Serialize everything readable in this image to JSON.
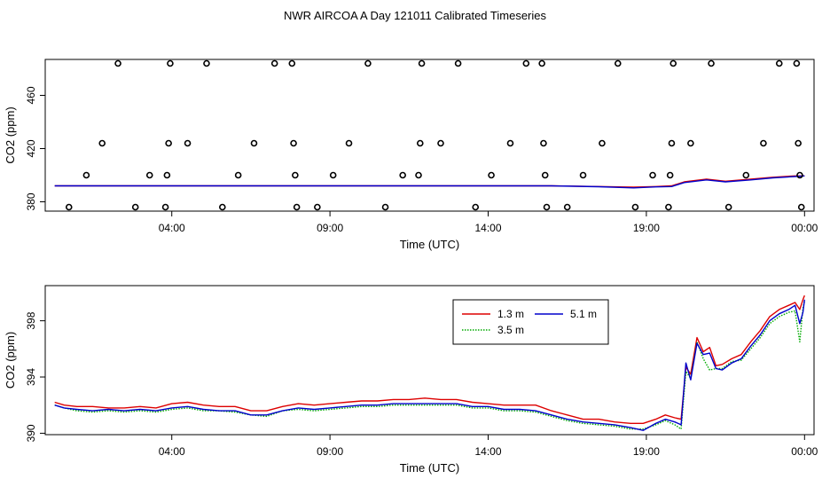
{
  "title": "NWR AIRCOA A  Day 121011  Calibrated Timeseries",
  "chart_data": [
    {
      "type": "scatter+line",
      "xlabel": "Time (UTC)",
      "ylabel": "CO2 (ppm)",
      "xlim": [
        0,
        24.3
      ],
      "ylim": [
        373,
        487
      ],
      "x_ticks": [
        {
          "v": 4,
          "label": "04:00"
        },
        {
          "v": 9,
          "label": "09:00"
        },
        {
          "v": 14,
          "label": "14:00"
        },
        {
          "v": 19,
          "label": "19:00"
        },
        {
          "v": 24,
          "label": "00:00"
        }
      ],
      "y_ticks": [
        {
          "v": 380,
          "label": "380"
        },
        {
          "v": 420,
          "label": "420"
        },
        {
          "v": 460,
          "label": "460"
        }
      ],
      "cal_points": [
        {
          "x": 0.75,
          "y": 376
        },
        {
          "x": 1.3,
          "y": 400
        },
        {
          "x": 1.8,
          "y": 424
        },
        {
          "x": 2.3,
          "y": 484
        },
        {
          "x": 2.85,
          "y": 376
        },
        {
          "x": 3.3,
          "y": 400
        },
        {
          "x": 3.8,
          "y": 376
        },
        {
          "x": 3.85,
          "y": 400
        },
        {
          "x": 3.9,
          "y": 424
        },
        {
          "x": 3.95,
          "y": 484
        },
        {
          "x": 4.5,
          "y": 424
        },
        {
          "x": 5.1,
          "y": 484
        },
        {
          "x": 5.6,
          "y": 376
        },
        {
          "x": 6.1,
          "y": 400
        },
        {
          "x": 6.6,
          "y": 424
        },
        {
          "x": 7.25,
          "y": 484
        },
        {
          "x": 7.8,
          "y": 484
        },
        {
          "x": 7.85,
          "y": 424
        },
        {
          "x": 7.9,
          "y": 400
        },
        {
          "x": 7.95,
          "y": 376
        },
        {
          "x": 8.6,
          "y": 376
        },
        {
          "x": 9.1,
          "y": 400
        },
        {
          "x": 9.6,
          "y": 424
        },
        {
          "x": 10.2,
          "y": 484
        },
        {
          "x": 10.75,
          "y": 376
        },
        {
          "x": 11.3,
          "y": 400
        },
        {
          "x": 11.8,
          "y": 400
        },
        {
          "x": 11.85,
          "y": 424
        },
        {
          "x": 11.9,
          "y": 484
        },
        {
          "x": 12.5,
          "y": 424
        },
        {
          "x": 13.05,
          "y": 484
        },
        {
          "x": 13.6,
          "y": 376
        },
        {
          "x": 14.1,
          "y": 400
        },
        {
          "x": 14.7,
          "y": 424
        },
        {
          "x": 15.2,
          "y": 484
        },
        {
          "x": 15.7,
          "y": 484
        },
        {
          "x": 15.75,
          "y": 424
        },
        {
          "x": 15.8,
          "y": 400
        },
        {
          "x": 15.85,
          "y": 376
        },
        {
          "x": 16.5,
          "y": 376
        },
        {
          "x": 17.0,
          "y": 400
        },
        {
          "x": 17.6,
          "y": 424
        },
        {
          "x": 18.1,
          "y": 484
        },
        {
          "x": 18.65,
          "y": 376
        },
        {
          "x": 19.2,
          "y": 400
        },
        {
          "x": 19.7,
          "y": 376
        },
        {
          "x": 19.75,
          "y": 400
        },
        {
          "x": 19.8,
          "y": 424
        },
        {
          "x": 19.85,
          "y": 484
        },
        {
          "x": 20.4,
          "y": 424
        },
        {
          "x": 21.05,
          "y": 484
        },
        {
          "x": 21.6,
          "y": 376
        },
        {
          "x": 22.15,
          "y": 400
        },
        {
          "x": 22.7,
          "y": 424
        },
        {
          "x": 23.2,
          "y": 484
        },
        {
          "x": 23.75,
          "y": 484
        },
        {
          "x": 23.8,
          "y": 424
        },
        {
          "x": 23.85,
          "y": 400
        },
        {
          "x": 23.9,
          "y": 376
        }
      ],
      "series": [
        {
          "name": "1.3 m",
          "color": "#dd0000",
          "x": [
            0.3,
            2,
            4,
            6,
            9,
            12,
            14,
            16,
            17.5,
            18.6,
            19.3,
            19.8,
            20.2,
            20.9,
            21.5,
            22.3,
            23,
            23.7,
            24
          ],
          "y": [
            392,
            392,
            392,
            392,
            392,
            392,
            392,
            392,
            391.5,
            391,
            391.5,
            392,
            395,
            397,
            395.5,
            397,
            398.5,
            399.5,
            399.5
          ]
        },
        {
          "name": "5.1 m",
          "color": "#0000cc",
          "x": [
            0.3,
            2,
            4,
            6,
            9,
            12,
            14,
            16,
            17.5,
            18.6,
            19.3,
            19.8,
            20.2,
            20.9,
            21.5,
            22.3,
            23,
            23.7,
            24
          ],
          "y": [
            392,
            392,
            392,
            392,
            392,
            392,
            392,
            392,
            391.3,
            390.5,
            391.2,
            391.5,
            394.5,
            396.5,
            395,
            396.5,
            398,
            399,
            399.5
          ]
        }
      ]
    },
    {
      "type": "line",
      "xlabel": "Time (UTC)",
      "ylabel": "CO2 (ppm)",
      "xlim": [
        0,
        24.3
      ],
      "ylim": [
        389.9,
        400.5
      ],
      "x_ticks": [
        {
          "v": 4,
          "label": "04:00"
        },
        {
          "v": 9,
          "label": "09:00"
        },
        {
          "v": 14,
          "label": "14:00"
        },
        {
          "v": 19,
          "label": "19:00"
        },
        {
          "v": 24,
          "label": "00:00"
        }
      ],
      "y_ticks": [
        {
          "v": 390,
          "label": "390"
        },
        {
          "v": 394,
          "label": "394"
        },
        {
          "v": 398,
          "label": "398"
        }
      ],
      "legend": {
        "placement": "top-right",
        "entries": [
          {
            "name": "1.3 m",
            "color": "#dd0000",
            "style": "solid"
          },
          {
            "name": "5.1 m",
            "color": "#0000cc",
            "style": "solid"
          },
          {
            "name": "3.5 m",
            "color": "#00aa00",
            "style": "dotted"
          }
        ]
      },
      "series": [
        {
          "name": "1.3 m",
          "color": "#dd0000",
          "style": "solid",
          "x": [
            0.3,
            0.6,
            1.0,
            1.5,
            2.0,
            2.5,
            3.0,
            3.5,
            4.0,
            4.5,
            5.0,
            5.5,
            6.0,
            6.5,
            7.0,
            7.5,
            8.0,
            8.5,
            9.0,
            9.5,
            10.0,
            10.5,
            11.0,
            11.5,
            12.0,
            12.5,
            13.0,
            13.5,
            14.0,
            14.5,
            15.0,
            15.5,
            16.0,
            16.5,
            17.0,
            17.5,
            18.0,
            18.5,
            18.9,
            19.3,
            19.6,
            19.9,
            20.1,
            20.25,
            20.4,
            20.6,
            20.8,
            21.0,
            21.2,
            21.4,
            21.7,
            22.0,
            22.3,
            22.6,
            22.9,
            23.2,
            23.5,
            23.7,
            23.85,
            23.95,
            24.0
          ],
          "y": [
            392.2,
            392.0,
            391.9,
            391.9,
            391.8,
            391.8,
            391.9,
            391.8,
            392.1,
            392.2,
            392.0,
            391.9,
            391.9,
            391.6,
            391.6,
            391.9,
            392.1,
            392.0,
            392.1,
            392.2,
            392.3,
            392.3,
            392.4,
            392.4,
            392.5,
            392.4,
            392.4,
            392.2,
            392.1,
            392.0,
            392.0,
            392.0,
            391.6,
            391.3,
            391.0,
            391.0,
            390.8,
            390.7,
            390.7,
            391.0,
            391.3,
            391.1,
            391.0,
            394.7,
            394.2,
            396.8,
            395.8,
            396.1,
            394.8,
            394.9,
            395.3,
            395.6,
            396.5,
            397.3,
            398.3,
            398.8,
            399.1,
            399.3,
            398.8,
            399.5,
            399.8
          ]
        },
        {
          "name": "3.5 m",
          "color": "#00aa00",
          "style": "dotted",
          "x": [
            0.3,
            0.6,
            1.0,
            1.5,
            2.0,
            2.5,
            3.0,
            3.5,
            4.0,
            4.5,
            5.0,
            5.5,
            6.0,
            6.5,
            7.0,
            7.5,
            8.0,
            8.5,
            9.0,
            9.5,
            10.0,
            10.5,
            11.0,
            11.5,
            12.0,
            12.5,
            13.0,
            13.5,
            14.0,
            14.5,
            15.0,
            15.5,
            16.0,
            16.5,
            17.0,
            17.5,
            18.0,
            18.5,
            18.9,
            19.3,
            19.6,
            19.9,
            20.1,
            20.25,
            20.4,
            20.6,
            20.8,
            21.0,
            21.2,
            21.4,
            21.7,
            22.0,
            22.3,
            22.6,
            22.9,
            23.2,
            23.5,
            23.7,
            23.85,
            23.95,
            24.0
          ],
          "y": [
            392.0,
            391.8,
            391.6,
            391.5,
            391.6,
            391.5,
            391.6,
            391.5,
            391.7,
            391.8,
            391.6,
            391.6,
            391.5,
            391.3,
            391.2,
            391.6,
            391.7,
            391.6,
            391.7,
            391.8,
            391.9,
            391.9,
            392.0,
            392.0,
            392.0,
            392.0,
            392.0,
            391.8,
            391.8,
            391.6,
            391.6,
            391.5,
            391.2,
            390.9,
            390.7,
            390.6,
            390.5,
            390.3,
            390.3,
            390.6,
            390.9,
            390.6,
            390.3,
            394.4,
            393.9,
            396.5,
            395.3,
            394.5,
            394.6,
            394.6,
            395.1,
            395.2,
            396.0,
            396.8,
            397.8,
            398.3,
            398.6,
            398.7,
            396.5,
            398.9,
            399.4
          ]
        },
        {
          "name": "5.1 m",
          "color": "#0000cc",
          "style": "solid",
          "x": [
            0.3,
            0.6,
            1.0,
            1.5,
            2.0,
            2.5,
            3.0,
            3.5,
            4.0,
            4.5,
            5.0,
            5.5,
            6.0,
            6.5,
            7.0,
            7.5,
            8.0,
            8.5,
            9.0,
            9.5,
            10.0,
            10.5,
            11.0,
            11.5,
            12.0,
            12.5,
            13.0,
            13.5,
            14.0,
            14.5,
            15.0,
            15.5,
            16.0,
            16.5,
            17.0,
            17.5,
            18.0,
            18.5,
            18.9,
            19.3,
            19.6,
            19.9,
            20.1,
            20.25,
            20.4,
            20.6,
            20.8,
            21.0,
            21.2,
            21.4,
            21.7,
            22.0,
            22.3,
            22.6,
            22.9,
            23.2,
            23.5,
            23.7,
            23.85,
            23.95,
            24.0
          ],
          "y": [
            392.0,
            391.8,
            391.7,
            391.6,
            391.7,
            391.6,
            391.7,
            391.6,
            391.8,
            391.9,
            391.7,
            391.6,
            391.6,
            391.3,
            391.3,
            391.6,
            391.8,
            391.7,
            391.8,
            391.9,
            392.0,
            392.0,
            392.1,
            392.1,
            392.1,
            392.1,
            392.1,
            391.9,
            391.9,
            391.7,
            391.7,
            391.6,
            391.3,
            391.0,
            390.8,
            390.7,
            390.6,
            390.4,
            390.2,
            390.7,
            391.0,
            390.8,
            390.6,
            395.0,
            393.8,
            396.4,
            395.6,
            395.7,
            394.6,
            394.5,
            395.0,
            395.3,
            396.2,
            397.0,
            398.0,
            398.5,
            398.8,
            399.1,
            397.8,
            398.6,
            399.5
          ]
        }
      ]
    }
  ]
}
